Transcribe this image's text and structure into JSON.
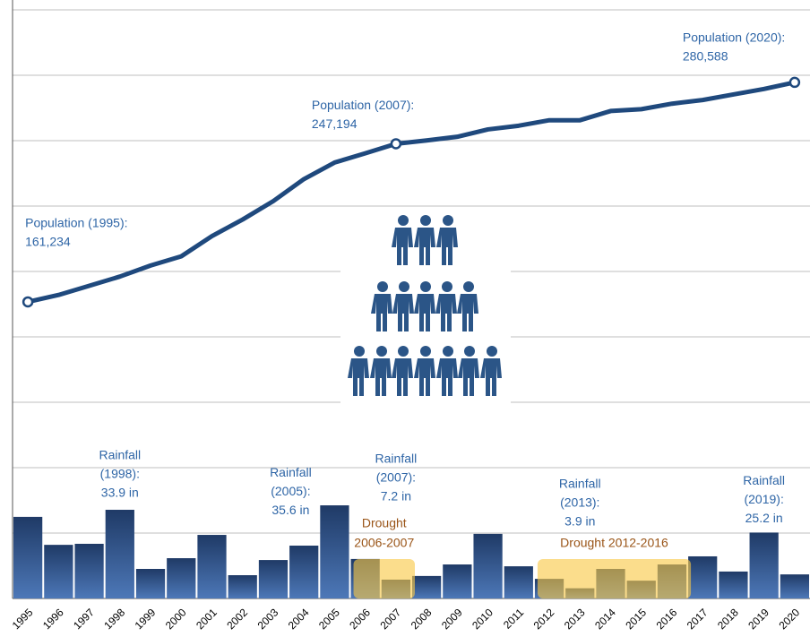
{
  "chart_data": {
    "type": "bar",
    "categories": [
      "1995",
      "1996",
      "1997",
      "1998",
      "1999",
      "2000",
      "2001",
      "2002",
      "2003",
      "2004",
      "2005",
      "2006",
      "2007",
      "2008",
      "2009",
      "2010",
      "2011",
      "2012",
      "2013",
      "2014",
      "2015",
      "2016",
      "2017",
      "2018",
      "2019",
      "2020"
    ],
    "series": [
      {
        "name": "Rainfall",
        "type": "bar",
        "color": "#2b4f86",
        "values": [
          31.2,
          20.5,
          20.9,
          33.9,
          11.3,
          15.4,
          24.3,
          8.9,
          14.7,
          20.2,
          35.6,
          15.1,
          7.2,
          8.6,
          13,
          24.7,
          12.3,
          7.5,
          3.9,
          11.3,
          6.8,
          13,
          16.1,
          10.3,
          25.2,
          9.2
        ]
      },
      {
        "name": "Population",
        "type": "line",
        "axis": "y2",
        "color": "#1f497d",
        "values": [
          161234,
          165000,
          170000,
          175000,
          181000,
          186000,
          197000,
          206000,
          216000,
          228000,
          237000,
          242000,
          247194,
          249000,
          251000,
          255000,
          257000,
          260000,
          260000,
          265000,
          266000,
          269000,
          271000,
          274000,
          277000,
          280588
        ]
      }
    ],
    "ylim": [
      0,
      225
    ],
    "yticks": [
      0,
      25,
      50,
      75,
      100,
      125,
      150,
      175,
      200,
      225
    ],
    "y2lim": [
      0,
      320000
    ],
    "grid": true,
    "annotations": [
      {
        "series": "Population",
        "category": "1995",
        "lines": [
          "Population (1995):",
          "161,234"
        ]
      },
      {
        "series": "Population",
        "category": "2007",
        "lines": [
          "Population (2007):",
          "247,194"
        ]
      },
      {
        "series": "Population",
        "category": "2020",
        "lines": [
          "Population (2020):",
          "280,588"
        ]
      },
      {
        "series": "Rainfall",
        "category": "1998",
        "lines": [
          "Rainfall",
          "(1998):",
          "33.9 in"
        ]
      },
      {
        "series": "Rainfall",
        "category": "2005",
        "lines": [
          "Rainfall",
          "(2005):",
          "35.6 in"
        ]
      },
      {
        "series": "Rainfall",
        "category": "2007",
        "lines": [
          "Rainfall",
          "(2007):",
          "7.2 in"
        ]
      },
      {
        "series": "Rainfall",
        "category": "2013",
        "lines": [
          "Rainfall",
          "(2013):",
          "3.9 in"
        ]
      },
      {
        "series": "Rainfall",
        "category": "2019",
        "lines": [
          "Rainfall",
          "(2019):",
          "25.2 in"
        ]
      }
    ],
    "shaded_periods": [
      {
        "from": "2006",
        "to": "2007",
        "color": "#f9c846",
        "lines": [
          "Drought",
          "2006-2007"
        ]
      },
      {
        "from": "2012",
        "to": "2016",
        "color": "#f9c846",
        "lines": [
          "Drought 2012-2016"
        ]
      }
    ]
  }
}
